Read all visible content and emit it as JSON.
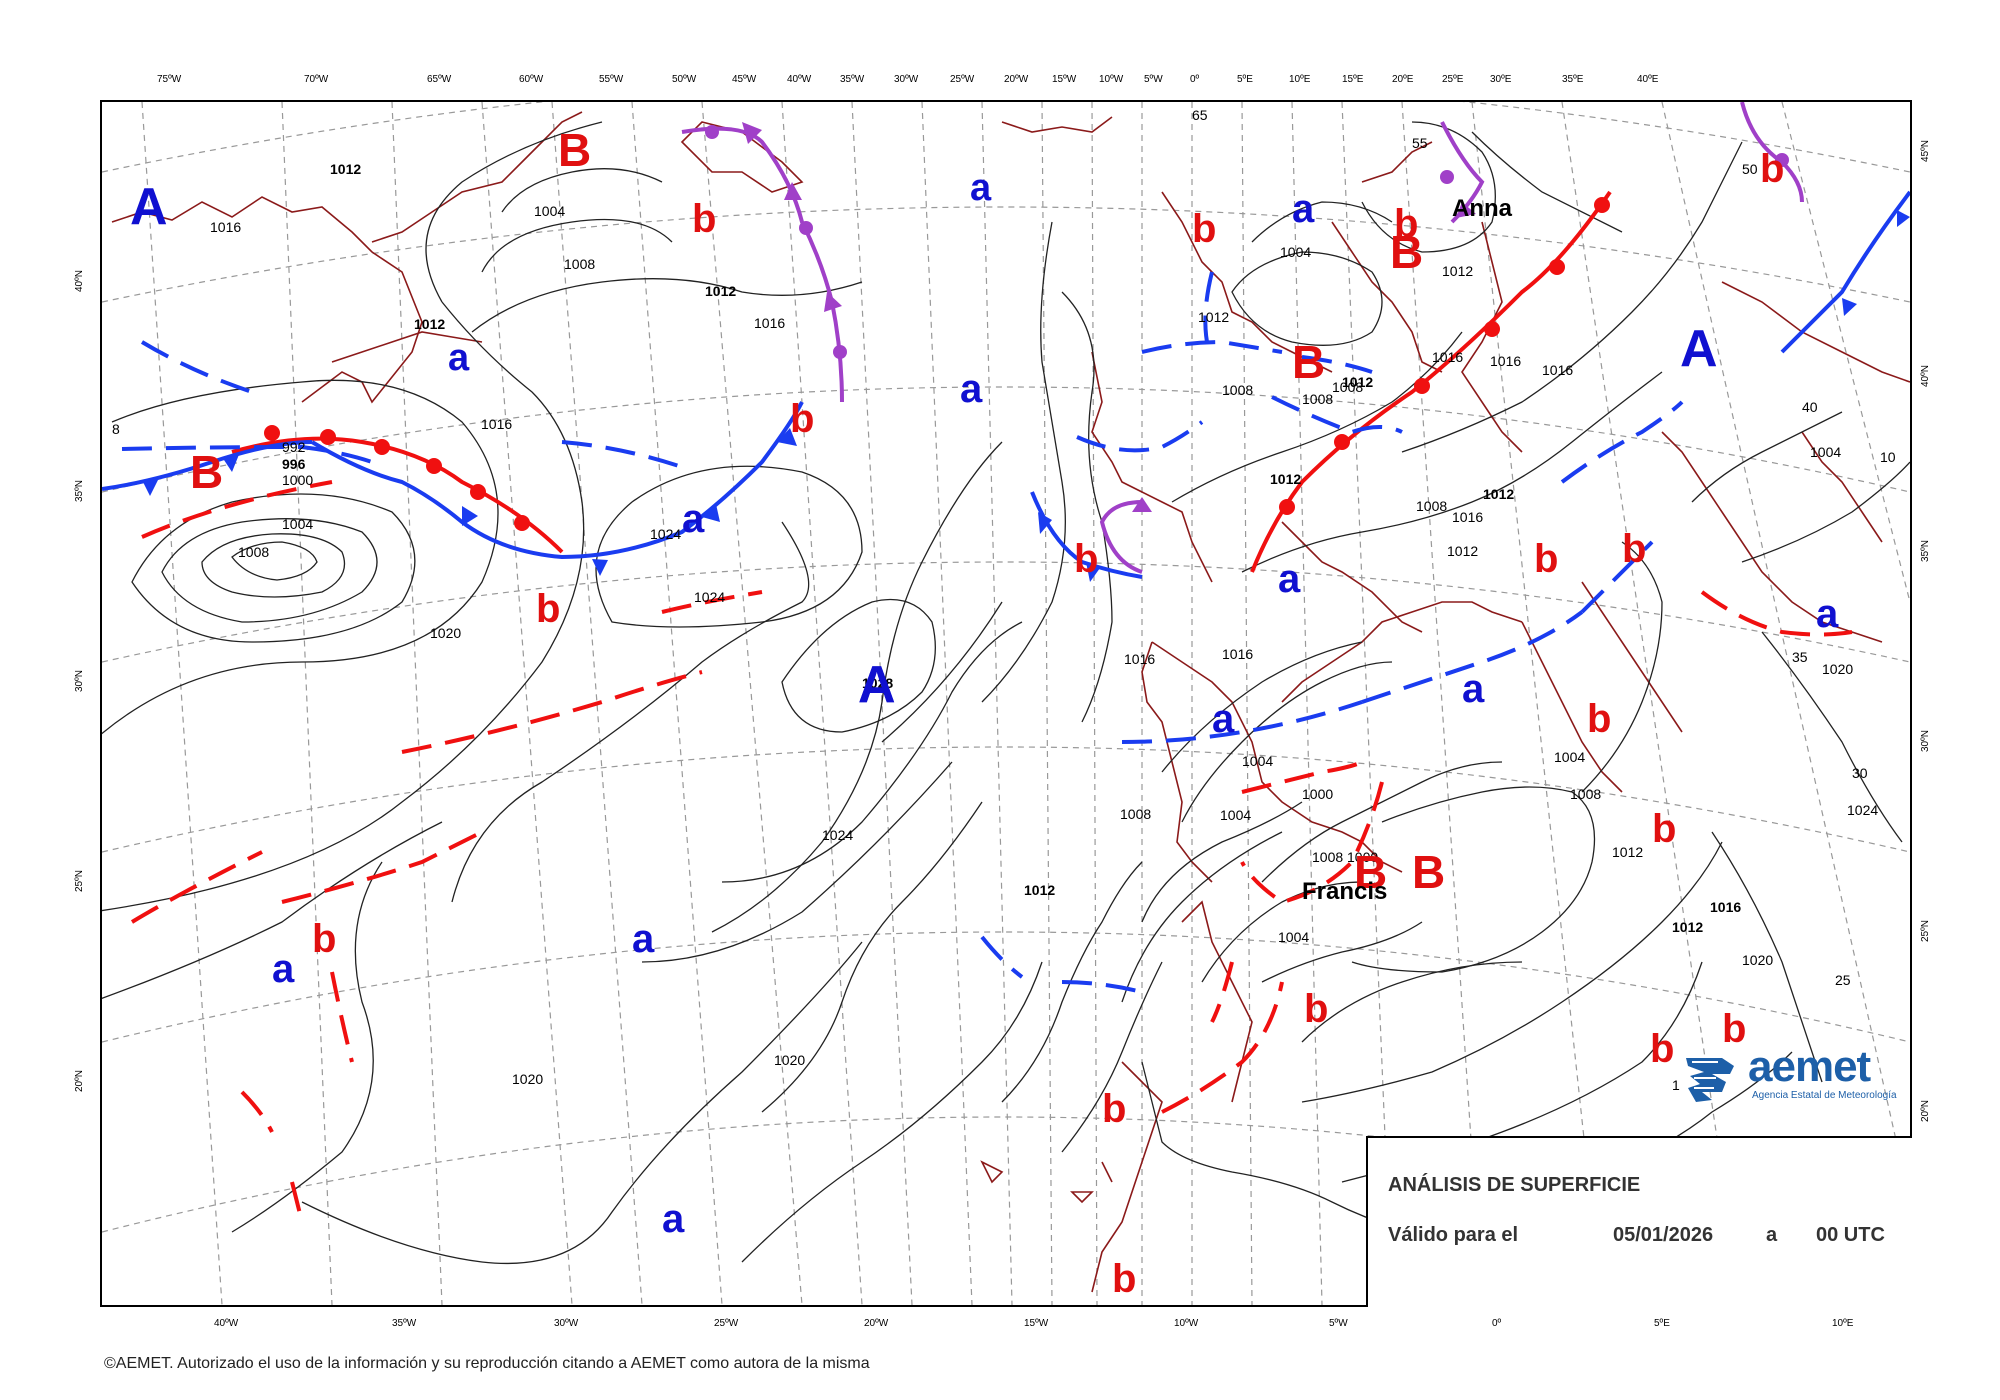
{
  "top_ticks": [
    "75ºW",
    "70ºW",
    "65ºW",
    "60ºW",
    "55ºW",
    "50ºW",
    "45ºW",
    "40ºW",
    "35ºW",
    "30ºW",
    "25ºW",
    "20ºW",
    "15ºW",
    "10ºW",
    "5ºW",
    "0º",
    "5ºE",
    "10ºE",
    "15ºE",
    "20ºE",
    "25ºE",
    "30ºE",
    "35ºE",
    "40ºE"
  ],
  "bottom_ticks": [
    "40ºW",
    "35ºW",
    "30ºW",
    "25ºW",
    "20ºW",
    "15ºW",
    "10ºW",
    "5ºW",
    "0º",
    "5ºE",
    "10ºE"
  ],
  "left_ticks": [
    "40ºN",
    "35ºN",
    "30ºN",
    "25ºN",
    "20ºN"
  ],
  "right_ticks": [
    "45ºN",
    "40ºN",
    "35ºN",
    "30ºN",
    "25ºN",
    "20ºN"
  ],
  "isobar_labels": [
    "1012",
    "1016",
    "1012",
    "1004",
    "1008",
    "1012",
    "1016",
    "1016",
    "1000",
    "1004",
    "1008",
    "996",
    "992",
    "1020",
    "1024",
    "1024",
    "1028",
    "1024",
    "1020",
    "1020",
    "1016",
    "1016",
    "1012",
    "1008",
    "1004",
    "1004",
    "1000",
    "1008",
    "1012",
    "1016",
    "1012",
    "1008",
    "1008",
    "1012",
    "1012",
    "1016",
    "1016",
    "1016",
    "1012",
    "1004",
    "1008",
    "1004",
    "1008",
    "1012",
    "1012",
    "1016",
    "1020",
    "1020",
    "1024",
    "1004",
    "1000",
    "1012",
    "1004",
    "1008",
    "65",
    "55",
    "50",
    "40",
    "35",
    "30",
    "25",
    "1",
    "8",
    "10"
  ],
  "pressure_centers": [
    "A",
    "B",
    "B",
    "a",
    "b",
    "b",
    "a",
    "a",
    "b",
    "b",
    "A",
    "a",
    "b",
    "B",
    "b",
    "a",
    "B",
    "a",
    "b",
    "B",
    "A",
    "b",
    "a",
    "a",
    "B",
    "b",
    "b",
    "b",
    "b",
    "b",
    "a",
    "a",
    "a",
    "b",
    "b",
    "b",
    "b",
    "a",
    "A"
  ],
  "storms": [
    "Anna",
    "Francis"
  ],
  "info": {
    "title": "ANÁLISIS DE SUPERFICIE",
    "valid_label": "Válido para el",
    "date": "05/01/2026",
    "a_word": "a",
    "time": "00 UTC"
  },
  "logo": {
    "name": "aemet",
    "subtitle": "Agencia Estatal de Meteorología"
  },
  "copyright": "©AEMET. Autorizado el uso de la información y su reproducción citando a AEMET como autora de la misma",
  "colors": {
    "high": "#1010d0",
    "low": "#e01010",
    "cold_front": "#1a3cf0",
    "warm_front": "#f01010",
    "occluded_front": "#a040c8",
    "coast": "#8b1a1a"
  }
}
